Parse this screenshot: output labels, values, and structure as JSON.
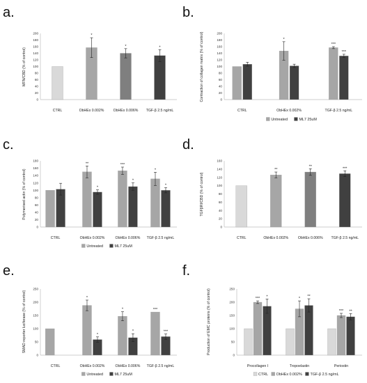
{
  "chart_data": [
    {
      "panel": "a.",
      "type": "bar",
      "ylabel": "MFN/CBD (% of control)",
      "ylim": [
        0,
        200
      ],
      "yticks": [
        0,
        20,
        40,
        60,
        80,
        100,
        120,
        140,
        160,
        180,
        200
      ],
      "categories": [
        "CTRL",
        "ObHEx 0.002%",
        "ObHEx 0.006%",
        "TGF-β 2.5 ng/mL"
      ],
      "series": [
        {
          "values": [
            100,
            157,
            140,
            133
          ],
          "errors": [
            0,
            30,
            14,
            18
          ],
          "stars": [
            "",
            "*",
            "*",
            "*"
          ],
          "colors": [
            "#d9d9d9",
            "#a6a6a6",
            "#7f7f7f",
            "#404040"
          ]
        }
      ]
    },
    {
      "panel": "b.",
      "type": "bar",
      "ylabel": "Contraction of collagen matrix (% of control)",
      "ylim": [
        0,
        200
      ],
      "yticks": [
        0,
        20,
        40,
        60,
        80,
        100,
        120,
        140,
        160,
        180,
        200
      ],
      "categories": [
        "CTRL",
        "ObHEx 0.002%",
        "TGF-β 2.5 ng/mL"
      ],
      "series": [
        {
          "name": "Untreated",
          "values": [
            100,
            147,
            157
          ],
          "errors": [
            0,
            28,
            3
          ],
          "stars": [
            "",
            "*",
            "***"
          ]
        },
        {
          "name": "ML7 25uM",
          "values": [
            107,
            102,
            132
          ],
          "errors": [
            6,
            5,
            5
          ],
          "stars": [
            "",
            "",
            "***"
          ]
        }
      ],
      "legend": [
        "Untreated",
        "ML7 25uM"
      ]
    },
    {
      "panel": "c.",
      "type": "bar",
      "ylabel": "Polymerised actin (% of control)",
      "ylim": [
        0,
        180
      ],
      "yticks": [
        0,
        20,
        40,
        60,
        80,
        100,
        120,
        140,
        160,
        180
      ],
      "categories": [
        "CTRL",
        "ObHEx 0.002%",
        "ObHEx 0.006%",
        "TGF-β 2.5 ng/mL"
      ],
      "series": [
        {
          "name": "Untreated",
          "values": [
            100,
            150,
            153,
            131
          ],
          "errors": [
            0,
            16,
            10,
            18
          ],
          "stars": [
            "",
            "**",
            "***",
            "*"
          ]
        },
        {
          "name": "ML7 25uM",
          "values": [
            103,
            95,
            110,
            100
          ],
          "errors": [
            16,
            6,
            10,
            7
          ],
          "stars": [
            "",
            "*",
            "*",
            "*"
          ]
        }
      ],
      "legend": [
        "Untreated",
        "ML7 25uM"
      ]
    },
    {
      "panel": "d.",
      "type": "bar",
      "ylabel": "TGFβRI/CBD (% of control)",
      "ylim": [
        0,
        160
      ],
      "yticks": [
        0,
        20,
        40,
        60,
        80,
        100,
        120,
        140,
        160
      ],
      "categories": [
        "CTRL",
        "ObHEx 0.002%",
        "ObHEx 0.006%",
        "TGF-β 2.5 ng/mL"
      ],
      "series": [
        {
          "values": [
            100,
            126,
            133,
            129
          ],
          "errors": [
            0,
            7,
            8,
            7
          ],
          "stars": [
            "",
            "**",
            "**",
            "***"
          ],
          "colors": [
            "#d9d9d9",
            "#a6a6a6",
            "#7f7f7f",
            "#404040"
          ]
        }
      ]
    },
    {
      "panel": "e.",
      "type": "bar",
      "ylabel": "SMAD reporter luciferase (% of control)",
      "ylim": [
        0,
        250
      ],
      "yticks": [
        0,
        50,
        100,
        150,
        200,
        250
      ],
      "categories": [
        "CTRL",
        "ObHEx 0.002%",
        "ObHEx 0.006%",
        "TGF-β 2.5 ng/mL"
      ],
      "series": [
        {
          "name": "Untreated",
          "values": [
            100,
            188,
            147,
            163
          ],
          "errors": [
            0,
            20,
            17,
            0
          ],
          "stars": [
            "",
            "*",
            "*",
            "***"
          ]
        },
        {
          "name": "ML7 25uM",
          "values": [
            null,
            59,
            66,
            70
          ],
          "errors": [
            0,
            10,
            15,
            10
          ],
          "stars": [
            "",
            "*",
            "*",
            "***"
          ]
        }
      ],
      "legend": [
        "Untreated",
        "ML7 25uM"
      ]
    },
    {
      "panel": "f.",
      "type": "bar",
      "ylabel": "Production of EMC proteins (% of control)",
      "ylim": [
        0,
        250
      ],
      "yticks": [
        0,
        50,
        100,
        150,
        200,
        250
      ],
      "categories": [
        "Procollagen I",
        "Tropoelastin",
        "Periostin"
      ],
      "series": [
        {
          "name": "CTRL",
          "values": [
            100,
            100,
            100
          ],
          "errors": [
            0,
            0,
            0
          ],
          "stars": [
            "",
            "",
            ""
          ]
        },
        {
          "name": "ObHEx 0.002%",
          "values": [
            200,
            175,
            150
          ],
          "errors": [
            5,
            30,
            8
          ],
          "stars": [
            "***",
            "*",
            "***"
          ]
        },
        {
          "name": "TGF-β 2.5 ng/mL",
          "values": [
            185,
            188,
            145
          ],
          "errors": [
            27,
            25,
            12
          ],
          "stars": [
            "*",
            "**",
            "**"
          ]
        }
      ],
      "legend": [
        "CTRL",
        "ObHEx 0.002%",
        "TGF-β 2.5 ng/mL"
      ]
    }
  ],
  "colors": {
    "ctrl": "#d9d9d9",
    "untreated": "#a6a6a6",
    "ml7": "#404040",
    "obhex006": "#7f7f7f",
    "obhex002": "#a6a6a6",
    "tgf": "#404040"
  }
}
